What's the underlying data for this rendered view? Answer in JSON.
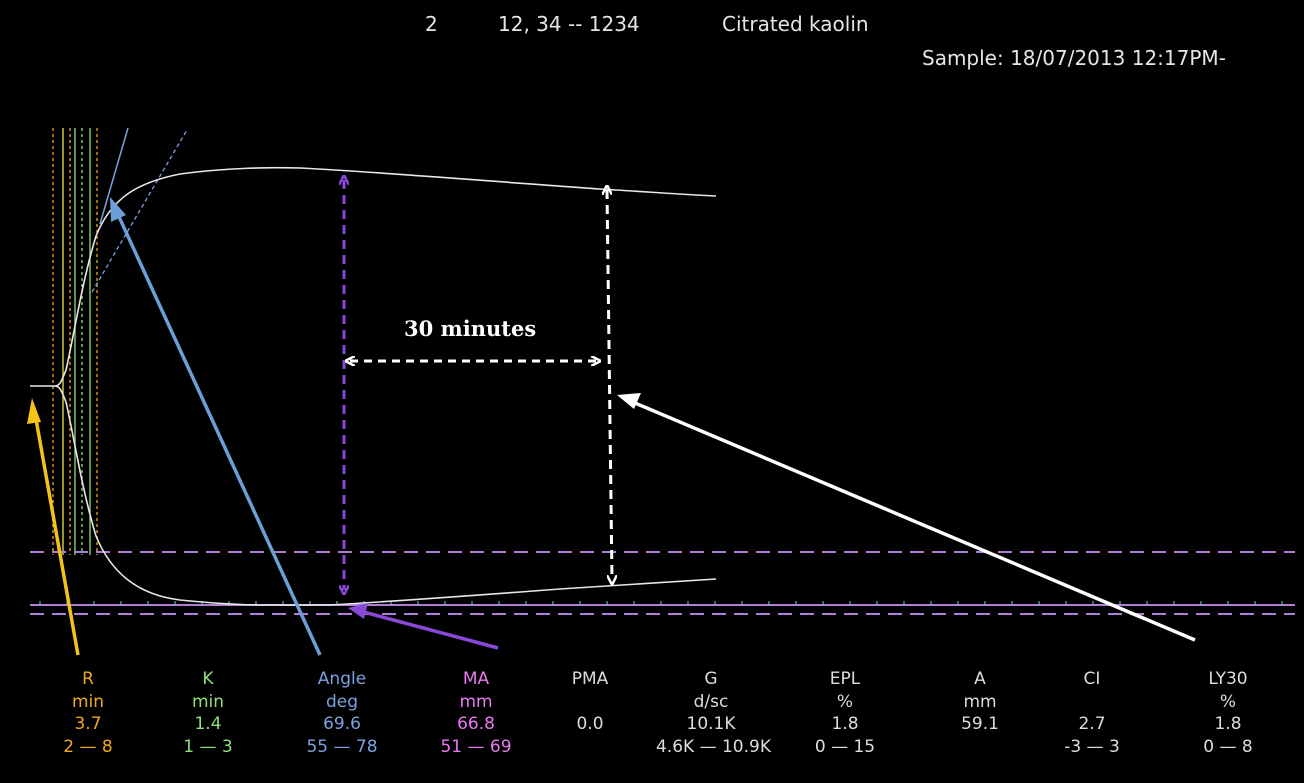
{
  "header": {
    "channel": "2",
    "patient_id": "12, 34 -- 1234",
    "assay": "Citrated kaolin",
    "sample": "Sample: 18/07/2013 12:17PM-"
  },
  "annotation": {
    "interval_label": "30 minutes"
  },
  "colors": {
    "r": "#f0a822",
    "k": "#8ee07a",
    "angle": "#7ba2e0",
    "ma": "#ea7af0",
    "white": "#dddddd",
    "purple_line": "#b07cd8",
    "yellow_arrow": "#f5c218",
    "blue_arrow": "#6a9fd8",
    "purple_arrow": "#8a48d8"
  },
  "parameters": [
    {
      "name": "R",
      "unit": "min",
      "value": "3.7",
      "range": "2 — 8",
      "color": "#f0a822"
    },
    {
      "name": "K",
      "unit": "min",
      "value": "1.4",
      "range": "1 — 3",
      "color": "#8ee07a"
    },
    {
      "name": "Angle",
      "unit": "deg",
      "value": "69.6",
      "range": "55 — 78",
      "color": "#7ba2e0"
    },
    {
      "name": "MA",
      "unit": "mm",
      "value": "66.8",
      "range": "51 — 69",
      "color": "#ea7af0"
    },
    {
      "name": "PMA",
      "unit": "",
      "value": "0.0",
      "range": "",
      "color": "#dddddd"
    },
    {
      "name": "G",
      "unit": "d/sc",
      "value": "10.1K",
      "range": "4.6K — 10.9K",
      "color": "#dddddd"
    },
    {
      "name": "EPL",
      "unit": "%",
      "value": "1.8",
      "range": "0 — 15",
      "color": "#dddddd"
    },
    {
      "name": "A",
      "unit": "mm",
      "value": "59.1",
      "range": "",
      "color": "#dddddd"
    },
    {
      "name": "CI",
      "unit": "",
      "value": "2.7",
      "range": "-3 — 3",
      "color": "#dddddd"
    },
    {
      "name": "LY30",
      "unit": "%",
      "value": "1.8",
      "range": "0 — 8",
      "color": "#dddddd"
    }
  ]
}
